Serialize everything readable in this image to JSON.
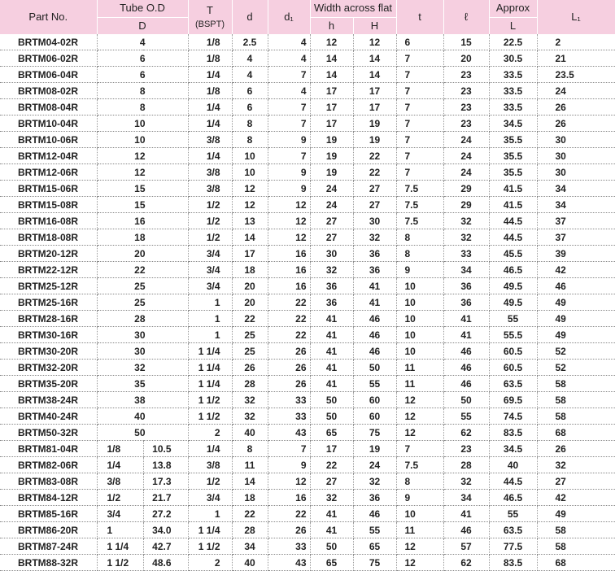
{
  "header": {
    "part_no": "Part No.",
    "tube_od": "Tube O.D",
    "tube_od_sub": "D",
    "t": "T",
    "t_sub": "(BSPT)",
    "d": "d",
    "d1": "d₁",
    "width_across_flat": "Width across flat",
    "h": "h",
    "H": "H",
    "t_small": "t",
    "ell": "ℓ",
    "approx": "Approx",
    "approx_sub": "L",
    "L1": "L₁"
  },
  "rows": [
    [
      "BRTM04-02R",
      "4",
      "",
      "1/8",
      "2.5",
      "4",
      "12",
      "12",
      "6",
      "15",
      "22.5",
      "2"
    ],
    [
      "BRTM06-02R",
      "6",
      "",
      "1/8",
      "4",
      "4",
      "14",
      "14",
      "7",
      "20",
      "30.5",
      "21"
    ],
    [
      "BRTM06-04R",
      "6",
      "",
      "1/4",
      "4",
      "7",
      "14",
      "14",
      "7",
      "23",
      "33.5",
      "23.5"
    ],
    [
      "BRTM08-02R",
      "8",
      "",
      "1/8",
      "6",
      "4",
      "17",
      "17",
      "7",
      "23",
      "33.5",
      "24"
    ],
    [
      "BRTM08-04R",
      "8",
      "",
      "1/4",
      "6",
      "7",
      "17",
      "17",
      "7",
      "23",
      "33.5",
      "26"
    ],
    [
      "BRTM10-04R",
      "10",
      "",
      "1/4",
      "8",
      "7",
      "17",
      "19",
      "7",
      "23",
      "34.5",
      "26"
    ],
    [
      "BRTM10-06R",
      "10",
      "",
      "3/8",
      "8",
      "9",
      "19",
      "19",
      "7",
      "24",
      "35.5",
      "30"
    ],
    [
      "BRTM12-04R",
      "12",
      "",
      "1/4",
      "10",
      "7",
      "19",
      "22",
      "7",
      "24",
      "35.5",
      "30"
    ],
    [
      "BRTM12-06R",
      "12",
      "",
      "3/8",
      "10",
      "9",
      "19",
      "22",
      "7",
      "24",
      "35.5",
      "30"
    ],
    [
      "BRTM15-06R",
      "15",
      "",
      "3/8",
      "12",
      "9",
      "24",
      "27",
      "7.5",
      "29",
      "41.5",
      "34"
    ],
    [
      "BRTM15-08R",
      "15",
      "",
      "1/2",
      "12",
      "12",
      "24",
      "27",
      "7.5",
      "29",
      "41.5",
      "34"
    ],
    [
      "BRTM16-08R",
      "16",
      "",
      "1/2",
      "13",
      "12",
      "27",
      "30",
      "7.5",
      "32",
      "44.5",
      "37"
    ],
    [
      "BRTM18-08R",
      "18",
      "",
      "1/2",
      "14",
      "12",
      "27",
      "32",
      "8",
      "32",
      "44.5",
      "37"
    ],
    [
      "BRTM20-12R",
      "20",
      "",
      "3/4",
      "17",
      "16",
      "30",
      "36",
      "8",
      "33",
      "45.5",
      "39"
    ],
    [
      "BRTM22-12R",
      "22",
      "",
      "3/4",
      "18",
      "16",
      "32",
      "36",
      "9",
      "34",
      "46.5",
      "42"
    ],
    [
      "BRTM25-12R",
      "25",
      "",
      "3/4",
      "20",
      "16",
      "36",
      "41",
      "10",
      "36",
      "49.5",
      "46"
    ],
    [
      "BRTM25-16R",
      "25",
      "",
      "1",
      "20",
      "22",
      "36",
      "41",
      "10",
      "36",
      "49.5",
      "49"
    ],
    [
      "BRTM28-16R",
      "28",
      "",
      "1",
      "22",
      "22",
      "41",
      "46",
      "10",
      "41",
      "55",
      "49"
    ],
    [
      "BRTM30-16R",
      "30",
      "",
      "1",
      "25",
      "22",
      "41",
      "46",
      "10",
      "41",
      "55.5",
      "49"
    ],
    [
      "BRTM30-20R",
      "30",
      "",
      "1 1/4",
      "25",
      "26",
      "41",
      "46",
      "10",
      "46",
      "60.5",
      "52"
    ],
    [
      "BRTM32-20R",
      "32",
      "",
      "1 1/4",
      "26",
      "26",
      "41",
      "50",
      "11",
      "46",
      "60.5",
      "52"
    ],
    [
      "BRTM35-20R",
      "35",
      "",
      "1 1/4",
      "28",
      "26",
      "41",
      "55",
      "11",
      "46",
      "63.5",
      "58"
    ],
    [
      "BRTM38-24R",
      "38",
      "",
      "1 1/2",
      "32",
      "33",
      "50",
      "60",
      "12",
      "50",
      "69.5",
      "58"
    ],
    [
      "BRTM40-24R",
      "40",
      "",
      "1 1/2",
      "32",
      "33",
      "50",
      "60",
      "12",
      "55",
      "74.5",
      "58"
    ],
    [
      "BRTM50-32R",
      "50",
      "",
      "2",
      "40",
      "43",
      "65",
      "75",
      "12",
      "62",
      "83.5",
      "68"
    ],
    [
      "BRTM81-04R",
      "1/8",
      "10.5",
      "1/4",
      "8",
      "7",
      "17",
      "19",
      "7",
      "23",
      "34.5",
      "26"
    ],
    [
      "BRTM82-06R",
      "1/4",
      "13.8",
      "3/8",
      "11",
      "9",
      "22",
      "24",
      "7.5",
      "28",
      "40",
      "32"
    ],
    [
      "BRTM83-08R",
      "3/8",
      "17.3",
      "1/2",
      "14",
      "12",
      "27",
      "32",
      "8",
      "32",
      "44.5",
      "27"
    ],
    [
      "BRTM84-12R",
      "1/2",
      "21.7",
      "3/4",
      "18",
      "16",
      "32",
      "36",
      "9",
      "34",
      "46.5",
      "42"
    ],
    [
      "BRTM85-16R",
      "3/4",
      "27.2",
      "1",
      "22",
      "22",
      "41",
      "46",
      "10",
      "41",
      "55",
      "49"
    ],
    [
      "BRTM86-20R",
      "1",
      "34.0",
      "1 1/4",
      "28",
      "26",
      "41",
      "55",
      "11",
      "46",
      "63.5",
      "58"
    ],
    [
      "BRTM87-24R",
      "1 1/4",
      "42.7",
      "1 1/2",
      "34",
      "33",
      "50",
      "65",
      "12",
      "57",
      "77.5",
      "58"
    ],
    [
      "BRTM88-32R",
      "1 1/2",
      "48.6",
      "2",
      "40",
      "43",
      "65",
      "75",
      "12",
      "62",
      "83.5",
      "68"
    ]
  ]
}
